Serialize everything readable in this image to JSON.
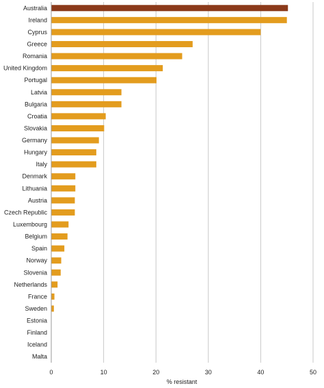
{
  "chart_data": {
    "type": "bar",
    "orientation": "horizontal",
    "categories": [
      "Australia",
      "Ireland",
      "Cyprus",
      "Greece",
      "Romania",
      "United Kingdom",
      "Portugal",
      "Latvia",
      "Bulgaria",
      "Croatia",
      "Slovakia",
      "Germany",
      "Hungary",
      "Italy",
      "Denmark",
      "Lithuania",
      "Austria",
      "Czech Republic",
      "Luxembourg",
      "Belgium",
      "Spain",
      "Norway",
      "Slovenia",
      "Netherlands",
      "France",
      "Sweden",
      "Estonia",
      "Finland",
      "Iceland",
      "Malta"
    ],
    "values": [
      45.2,
      45.0,
      40.0,
      27.0,
      25.0,
      21.3,
      20.1,
      13.4,
      13.4,
      10.4,
      10.1,
      9.1,
      8.6,
      8.6,
      4.6,
      4.6,
      4.5,
      4.5,
      3.3,
      3.1,
      2.5,
      1.9,
      1.8,
      1.2,
      0.6,
      0.5,
      0,
      0,
      0,
      0
    ],
    "highlight_index": 0,
    "colors": {
      "bar": "#e39c1e",
      "highlight": "#8b3a1a",
      "grid": "#c8c8c8",
      "axis": "#999999",
      "text": "#222222"
    },
    "xlabel": "% resistant",
    "ylabel": "",
    "title": "",
    "xlim": [
      0,
      50
    ],
    "xticks": [
      0,
      10,
      20,
      30,
      40,
      50
    ],
    "grid": "vertical"
  }
}
